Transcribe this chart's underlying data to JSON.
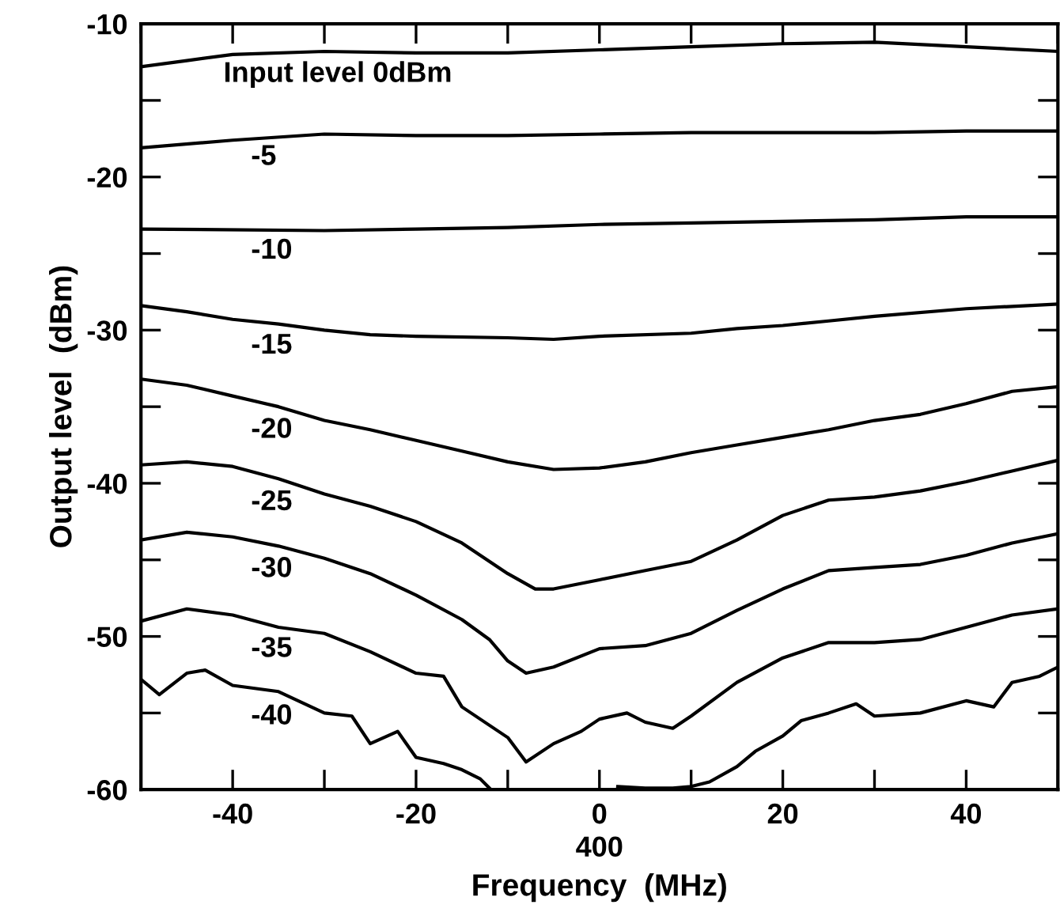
{
  "chart_data": {
    "type": "line",
    "xlabel": "Frequency  (MHz)",
    "ylabel": "Output level  (dBm)",
    "xlim": [
      -50,
      50
    ],
    "ylim": [
      -60,
      -10
    ],
    "xticks": [
      {
        "value": -50,
        "label": null
      },
      -40,
      {
        "value": -30,
        "label": null
      },
      -20,
      {
        "value": -10,
        "label": null
      },
      0,
      {
        "value": 10,
        "label": null
      },
      20,
      {
        "value": 30,
        "label": null
      },
      40,
      {
        "value": 50,
        "label": null
      }
    ],
    "yticks": [
      -60,
      {
        "value": -55,
        "label": null
      },
      -50,
      {
        "value": -45,
        "label": null
      },
      -40,
      {
        "value": -35,
        "label": null
      },
      -30,
      {
        "value": -25,
        "label": null
      },
      -20,
      {
        "value": -15,
        "label": null
      },
      -10
    ],
    "annotations": [
      "400"
    ],
    "grid": false,
    "marker": "none",
    "line_style": "solid",
    "series": [
      {
        "name": "Input level 0dBm",
        "color": "#000000",
        "x": [
          -50,
          -45,
          -40,
          -30,
          -20,
          -10,
          0,
          10,
          20,
          30,
          40,
          50
        ],
        "values": [
          -12.8,
          -12.4,
          -12.0,
          -11.8,
          -11.9,
          -11.9,
          -11.7,
          -11.5,
          -11.3,
          -11.2,
          -11.5,
          -11.8
        ]
      },
      {
        "name": "-5",
        "color": "#000000",
        "x": [
          -50,
          -40,
          -30,
          -20,
          -10,
          0,
          10,
          20,
          30,
          40,
          50
        ],
        "values": [
          -18.1,
          -17.6,
          -17.2,
          -17.3,
          -17.3,
          -17.2,
          -17.1,
          -17.1,
          -17.1,
          -17.0,
          -17.0
        ]
      },
      {
        "name": "-10",
        "color": "#000000",
        "x": [
          -50,
          -30,
          -20,
          -10,
          0,
          10,
          20,
          30,
          40,
          50
        ],
        "values": [
          -23.4,
          -23.5,
          -23.4,
          -23.3,
          -23.1,
          -23.0,
          -22.9,
          -22.8,
          -22.6,
          -22.6
        ]
      },
      {
        "name": "-15",
        "color": "#000000",
        "x": [
          -50,
          -45,
          -40,
          -35,
          -30,
          -25,
          -20,
          -10,
          -5,
          0,
          10,
          15,
          20,
          25,
          30,
          40,
          50
        ],
        "values": [
          -28.4,
          -28.8,
          -29.3,
          -29.6,
          -30.0,
          -30.3,
          -30.4,
          -30.5,
          -30.6,
          -30.4,
          -30.2,
          -29.9,
          -29.7,
          -29.4,
          -29.1,
          -28.6,
          -28.3
        ]
      },
      {
        "name": "-20",
        "color": "#000000",
        "x": [
          -50,
          -45,
          -40,
          -35,
          -30,
          -25,
          -20,
          -15,
          -10,
          -5,
          0,
          5,
          10,
          15,
          20,
          25,
          30,
          35,
          40,
          45,
          50
        ],
        "values": [
          -33.2,
          -33.6,
          -34.3,
          -35.0,
          -35.9,
          -36.5,
          -37.2,
          -37.9,
          -38.6,
          -39.1,
          -39.0,
          -38.6,
          -38.0,
          -37.5,
          -37.0,
          -36.5,
          -35.9,
          -35.5,
          -34.8,
          -34.0,
          -33.7
        ]
      },
      {
        "name": "-25",
        "color": "#000000",
        "x": [
          -50,
          -45,
          -40,
          -35,
          -30,
          -25,
          -20,
          -15,
          -10,
          -7,
          -5,
          0,
          5,
          10,
          15,
          20,
          25,
          30,
          35,
          40,
          45,
          50
        ],
        "values": [
          -38.8,
          -38.6,
          -38.9,
          -39.7,
          -40.7,
          -41.5,
          -42.5,
          -43.9,
          -45.9,
          -46.9,
          -46.9,
          -46.3,
          -45.7,
          -45.1,
          -43.7,
          -42.1,
          -41.1,
          -40.9,
          -40.5,
          -39.9,
          -39.2,
          -38.5
        ]
      },
      {
        "name": "-30",
        "color": "#000000",
        "x": [
          -50,
          -45,
          -40,
          -35,
          -30,
          -25,
          -20,
          -15,
          -12,
          -10,
          -8,
          -5,
          0,
          5,
          10,
          15,
          20,
          25,
          30,
          35,
          40,
          45,
          50
        ],
        "values": [
          -43.7,
          -43.2,
          -43.5,
          -44.1,
          -44.9,
          -45.9,
          -47.3,
          -48.9,
          -50.2,
          -51.6,
          -52.4,
          -52.0,
          -50.8,
          -50.6,
          -49.8,
          -48.3,
          -46.9,
          -45.7,
          -45.5,
          -45.3,
          -44.7,
          -43.9,
          -43.3
        ]
      },
      {
        "name": "-35",
        "color": "#000000",
        "x": [
          -50,
          -45,
          -40,
          -35,
          -30,
          -25,
          -20,
          -17,
          -15,
          -12,
          -10,
          -8,
          -5,
          -2,
          0,
          3,
          5,
          8,
          10,
          15,
          20,
          25,
          30,
          35,
          40,
          45,
          50
        ],
        "values": [
          -49.0,
          -48.2,
          -48.6,
          -49.4,
          -49.8,
          -51.0,
          -52.4,
          -52.6,
          -54.6,
          -55.8,
          -56.6,
          -58.2,
          -57.0,
          -56.2,
          -55.4,
          -55.0,
          -55.6,
          -56.0,
          -55.2,
          -53.0,
          -51.4,
          -50.4,
          -50.4,
          -50.2,
          -49.4,
          -48.6,
          -48.2
        ]
      },
      {
        "name": "-40",
        "color": "#000000",
        "x": [
          -50,
          -48,
          -45,
          -43,
          -40,
          -35,
          -30,
          -27,
          -25,
          -22,
          -20,
          -17,
          -15,
          -13,
          -12,
          -10,
          -5,
          0,
          2,
          5,
          8,
          10,
          12,
          15,
          17,
          20,
          22,
          25,
          28,
          30,
          35,
          40,
          43,
          45,
          48,
          50
        ],
        "values": [
          -52.8,
          -53.8,
          -52.4,
          -52.2,
          -53.2,
          -53.6,
          -55.0,
          -55.2,
          -57.0,
          -56.2,
          -57.9,
          -58.3,
          -58.7,
          -59.3,
          -59.9,
          null,
          null,
          null,
          -59.8,
          -59.9,
          -59.9,
          -59.8,
          -59.5,
          -58.5,
          -57.5,
          -56.5,
          -55.5,
          -55.0,
          -54.4,
          -55.2,
          -55.0,
          -54.2,
          -54.6,
          -53.0,
          -52.6,
          -52.0
        ]
      }
    ]
  }
}
